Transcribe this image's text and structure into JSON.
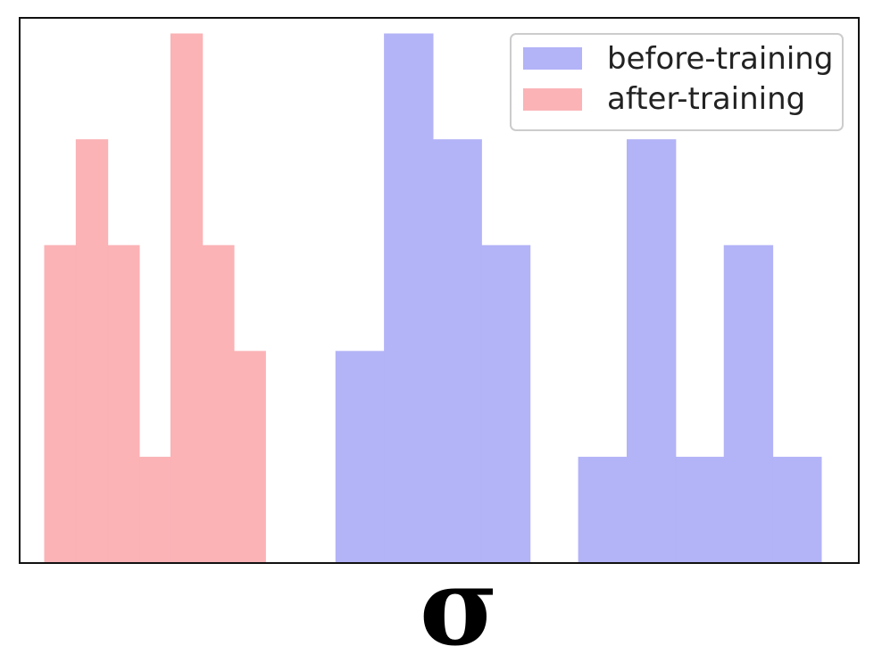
{
  "chart_data": {
    "type": "bar",
    "title": "",
    "xlabel": "σ",
    "ylabel": "",
    "ylim": [
      0,
      5
    ],
    "grid": false,
    "legend_position": "top-right",
    "series": [
      {
        "name": "before-training",
        "color": "#b3b3f7",
        "bins": [
          {
            "start": 6.0,
            "end": 7.0,
            "value": 2
          },
          {
            "start": 7.0,
            "end": 8.0,
            "value": 5
          },
          {
            "start": 8.0,
            "end": 9.0,
            "value": 4
          },
          {
            "start": 9.0,
            "end": 10.0,
            "value": 3
          },
          {
            "start": 11.0,
            "end": 12.0,
            "value": 1
          },
          {
            "start": 12.0,
            "end": 13.0,
            "value": 4
          },
          {
            "start": 13.0,
            "end": 14.0,
            "value": 1
          },
          {
            "start": 14.0,
            "end": 15.0,
            "value": 3
          },
          {
            "start": 15.0,
            "end": 16.0,
            "value": 1
          }
        ]
      },
      {
        "name": "after-training",
        "color": "#fbb3b6",
        "bins": [
          {
            "start": 0.0,
            "end": 0.65,
            "value": 3
          },
          {
            "start": 0.65,
            "end": 1.3,
            "value": 4
          },
          {
            "start": 1.3,
            "end": 1.95,
            "value": 3
          },
          {
            "start": 1.95,
            "end": 2.6,
            "value": 1
          },
          {
            "start": 2.6,
            "end": 3.25,
            "value": 5
          },
          {
            "start": 3.25,
            "end": 3.9,
            "value": 3
          },
          {
            "start": 3.9,
            "end": 4.55,
            "value": 2
          }
        ]
      }
    ]
  }
}
